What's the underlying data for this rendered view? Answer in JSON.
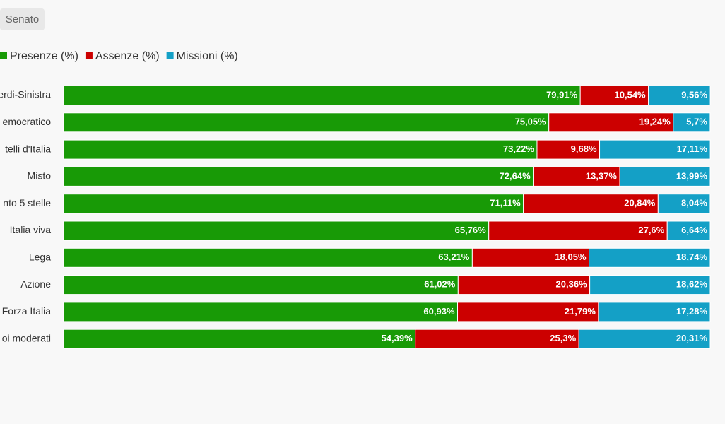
{
  "tab": "Senato",
  "chart_data": {
    "type": "stacked-bar",
    "orientation": "horizontal",
    "categories": [
      "erdi-Sinistra",
      "emocratico",
      "telli d'Italia",
      "Misto",
      "nto 5 stelle",
      "Italia viva",
      "Lega",
      "Azione",
      "Forza Italia",
      "oi moderati"
    ],
    "xlim": [
      0,
      100
    ],
    "legend": "top-left",
    "series": [
      {
        "name": "Presenze (%)",
        "color": "#189a06",
        "values": [
          79.91,
          75.05,
          73.22,
          72.64,
          71.11,
          65.76,
          63.21,
          61.02,
          60.93,
          54.39
        ],
        "value_labels": [
          "79,91%",
          "75,05%",
          "73,22%",
          "72,64%",
          "71,11%",
          "65,76%",
          "63,21%",
          "61,02%",
          "60,93%",
          "54,39%"
        ]
      },
      {
        "name": "Assenze (%)",
        "color": "#cc0000",
        "values": [
          10.54,
          19.24,
          9.68,
          13.37,
          20.84,
          27.6,
          18.05,
          20.36,
          21.79,
          25.3
        ],
        "value_labels": [
          "10,54%",
          "19,24%",
          "9,68%",
          "13,37%",
          "20,84%",
          "27,6%",
          "18,05%",
          "20,36%",
          "21,79%",
          "25,3%"
        ]
      },
      {
        "name": "Missioni (%)",
        "color": "#14a0c6",
        "values": [
          9.56,
          5.7,
          17.11,
          13.99,
          8.04,
          6.64,
          18.74,
          18.62,
          17.28,
          20.31
        ],
        "value_labels": [
          "9,56%",
          "5,7%",
          "17,11%",
          "13,99%",
          "8,04%",
          "6,64%",
          "18,74%",
          "18,62%",
          "17,28%",
          "20,31%"
        ]
      }
    ]
  }
}
